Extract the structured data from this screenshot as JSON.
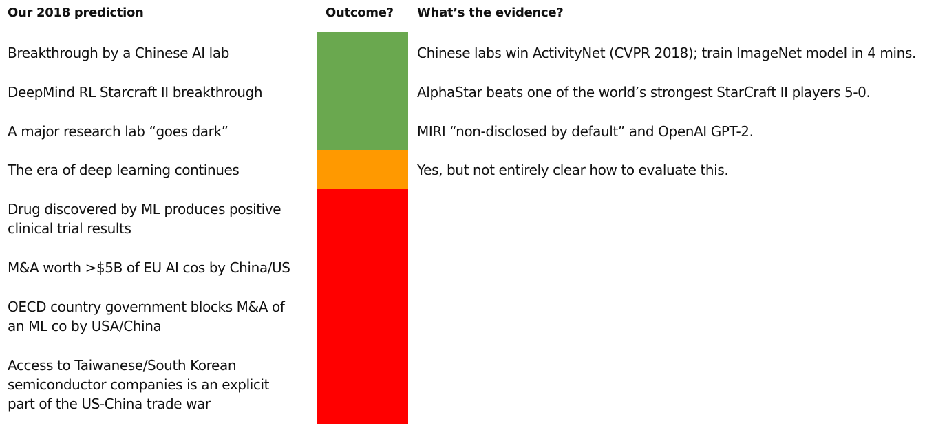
{
  "headers": {
    "prediction": "Our 2018 prediction",
    "outcome": "Outcome?",
    "evidence": "What’s the evidence?"
  },
  "colors": {
    "green": "#6aa84f",
    "orange": "#ff9900",
    "red": "#ff0000"
  },
  "rows": [
    {
      "prediction": [
        "Breakthrough by a Chinese AI lab"
      ],
      "outcome": "green",
      "evidence": "Chinese labs win ActivityNet (CVPR 2018); train ImageNet model in 4 mins."
    },
    {
      "prediction": [
        "DeepMind RL Starcraft II breakthrough"
      ],
      "outcome": "green",
      "evidence": "AlphaStar beats one of the world’s strongest StarCraft II players 5-0."
    },
    {
      "prediction": [
        "A major research lab “goes dark”"
      ],
      "outcome": "green",
      "evidence": "MIRI “non-disclosed by default” and OpenAI GPT-2."
    },
    {
      "prediction": [
        "The era of deep learning continues"
      ],
      "outcome": "orange",
      "evidence": "Yes, but not entirely clear how to evaluate this."
    },
    {
      "prediction": [
        "Drug discovered by ML produces positive",
        "clinical trial results"
      ],
      "outcome": "red",
      "evidence": ""
    },
    {
      "prediction": [
        "M&A worth >$5B of EU AI cos by China/US"
      ],
      "outcome": "red",
      "evidence": ""
    },
    {
      "prediction": [
        "OECD country government blocks M&A of",
        "an ML co by USA/China"
      ],
      "outcome": "red",
      "evidence": ""
    },
    {
      "prediction": [
        "Access to Taiwanese/South Korean",
        "semiconductor companies is an explicit",
        "part of the US-China trade war"
      ],
      "outcome": "red",
      "evidence": ""
    }
  ]
}
